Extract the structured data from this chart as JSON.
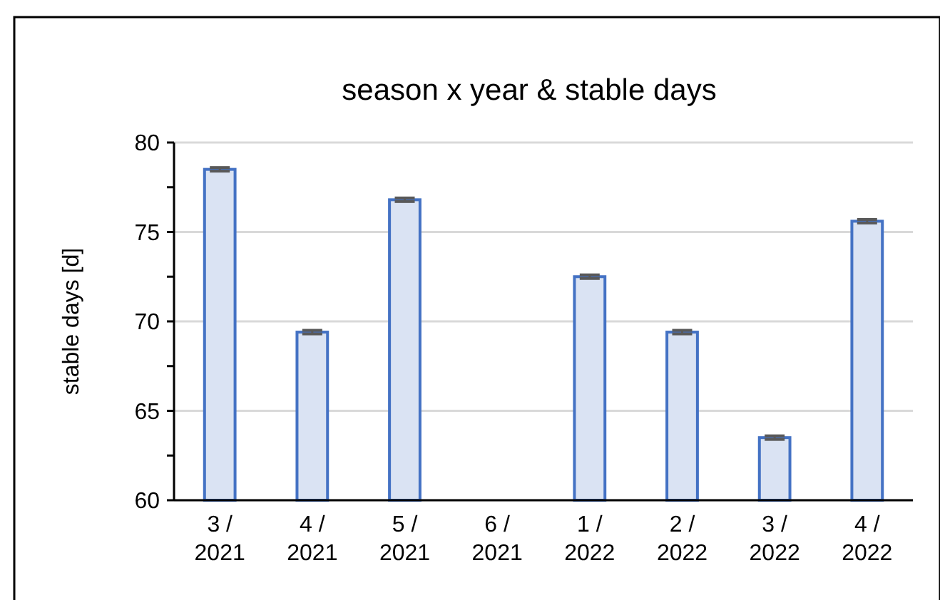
{
  "chart_data": {
    "type": "bar",
    "title": "season x year & stable days",
    "ylabel": "stable days [d]",
    "categories": [
      "3 / 2021",
      "4 / 2021",
      "5 / 2021",
      "6 / 2021",
      "1 / 2022",
      "2 / 2022",
      "3 / 2022",
      "4 / 2022"
    ],
    "values": [
      78.5,
      69.4,
      76.8,
      null,
      72.5,
      69.4,
      63.5,
      75.6
    ],
    "errors": [
      0.1,
      0.1,
      0.1,
      null,
      0.1,
      0.1,
      0.1,
      0.1
    ],
    "color": "#dae3f3",
    "ylim": [
      60,
      80
    ],
    "yticks": [
      60,
      {
        "value": 62.5,
        "label": null
      },
      65,
      {
        "value": 67.5,
        "label": null
      },
      70,
      {
        "value": 72.5,
        "label": null
      },
      75,
      {
        "value": 77.5,
        "label": null
      },
      80
    ],
    "grid": "y"
  }
}
